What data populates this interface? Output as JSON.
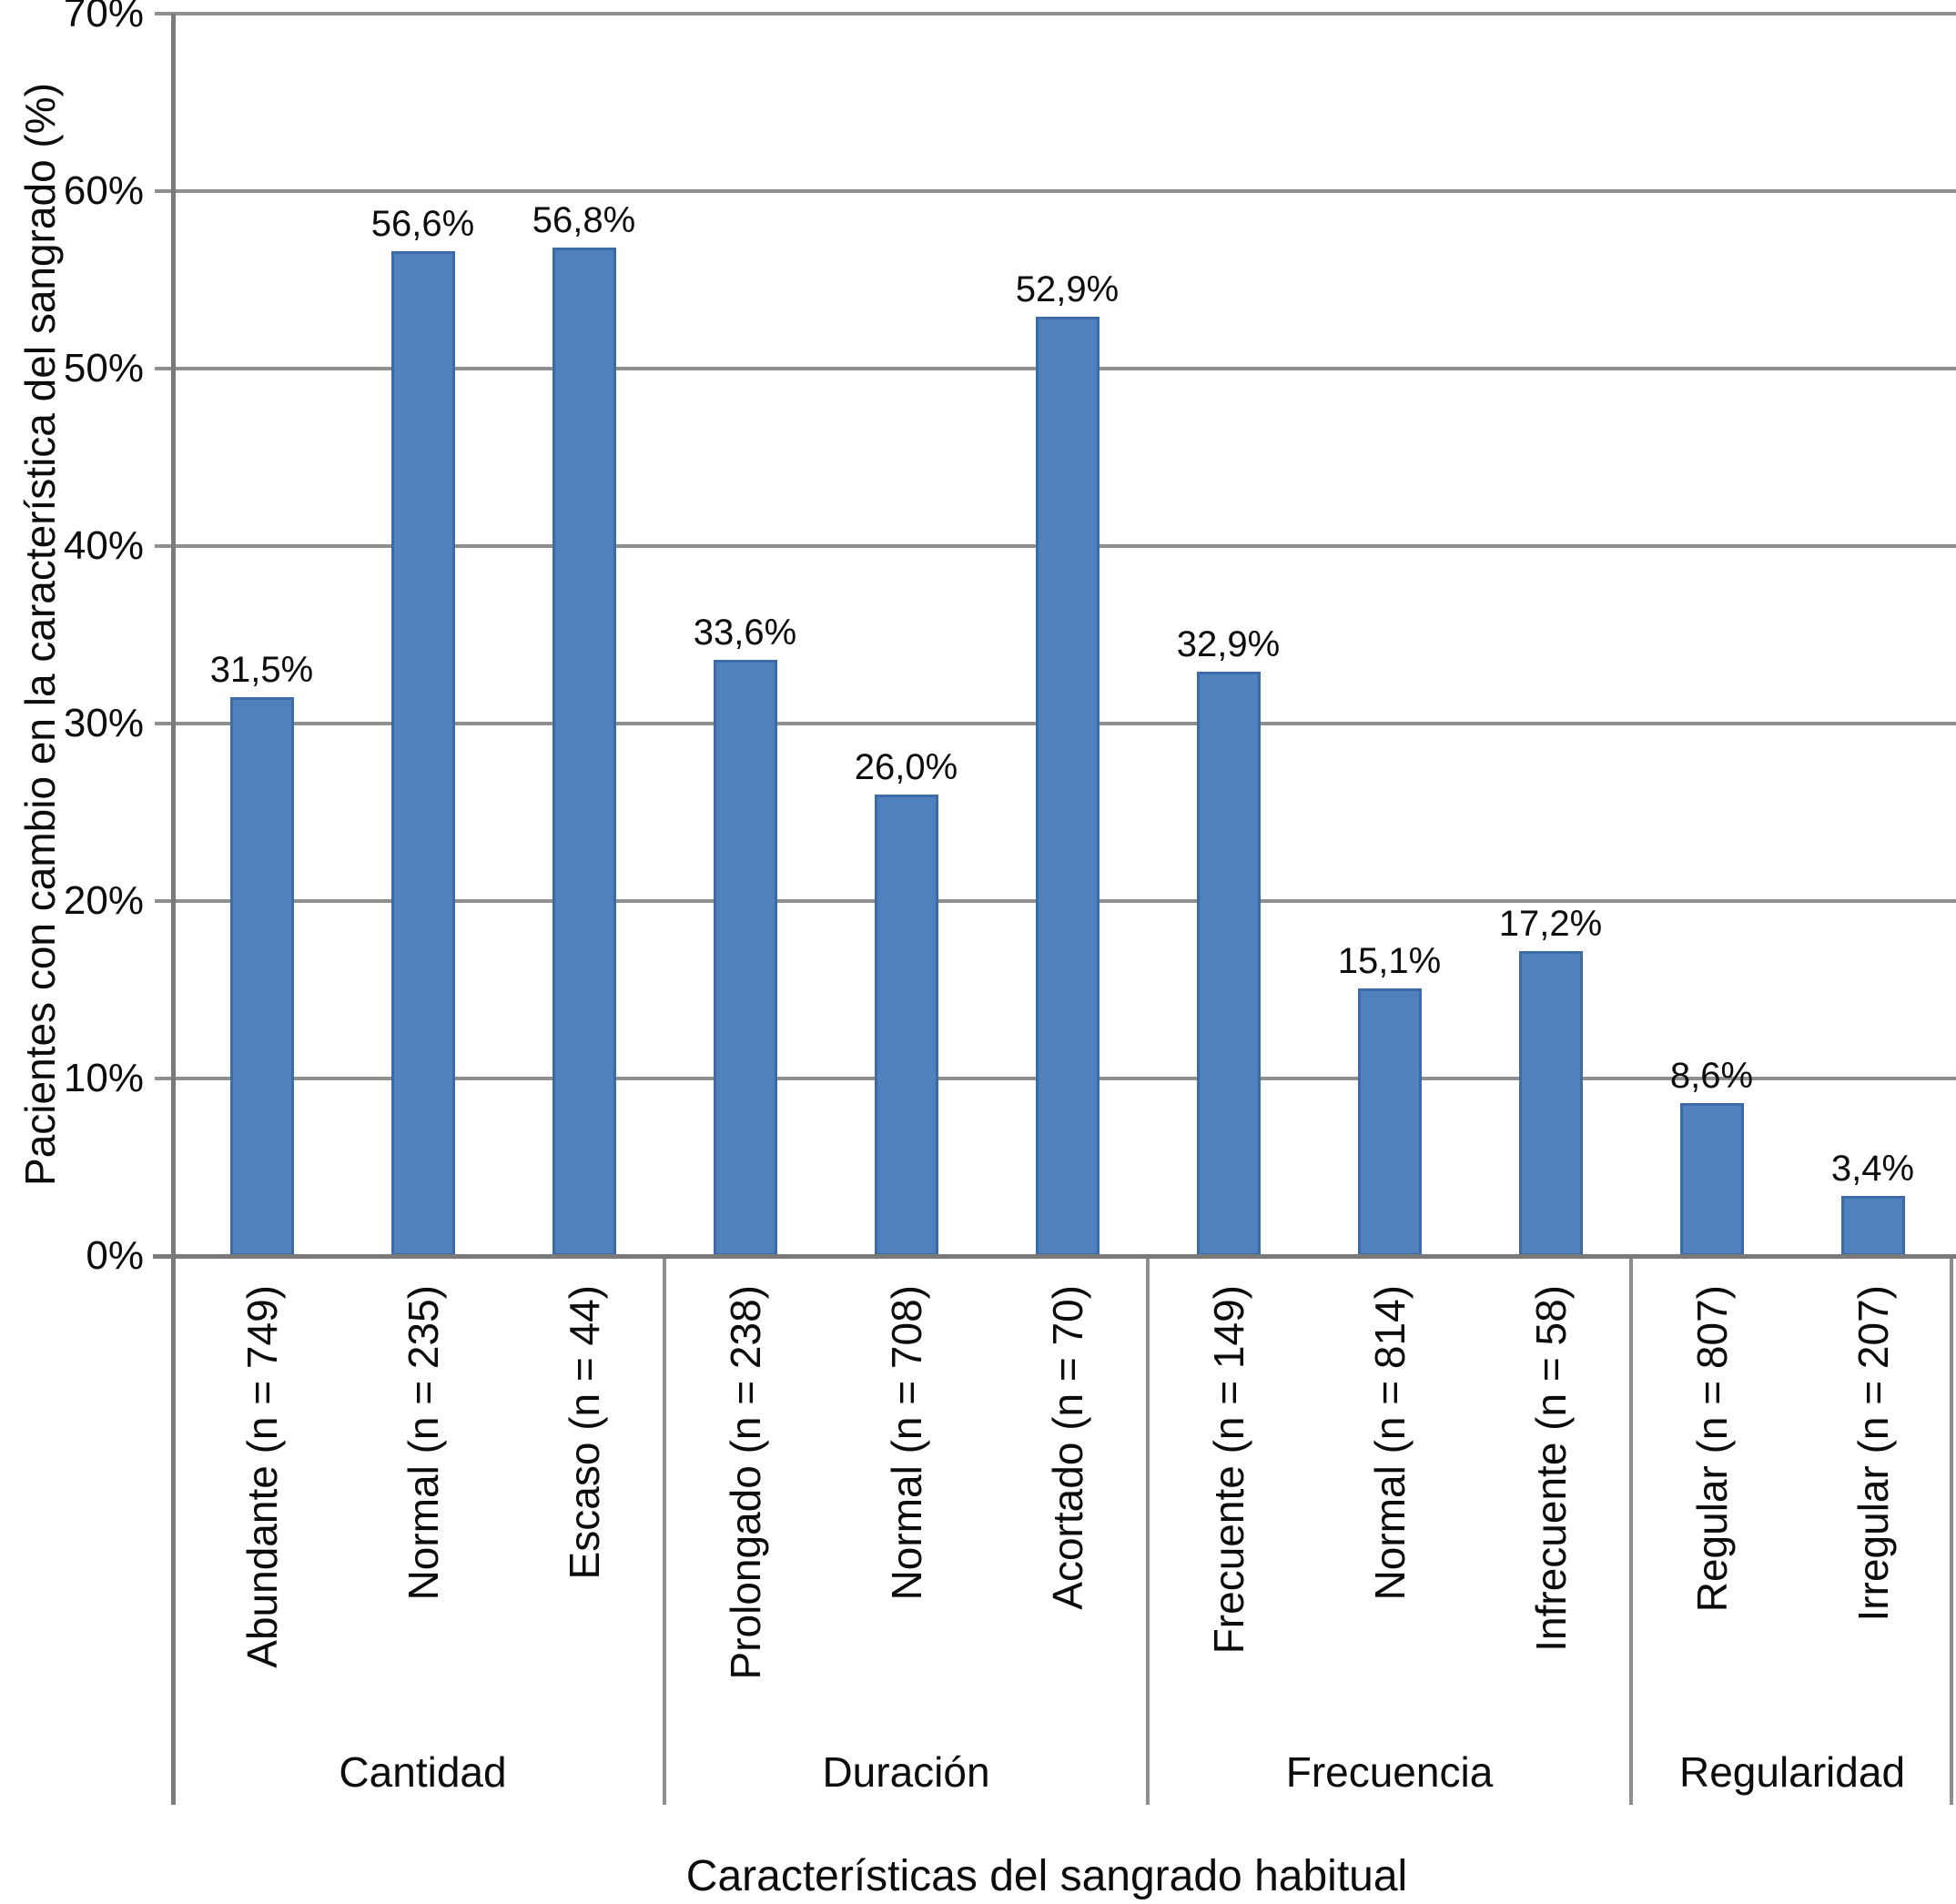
{
  "chart_data": {
    "type": "bar",
    "title": "",
    "xlabel": "Características del sangrado habitual",
    "ylabel": "Pacientes con cambio en la característica del sangrado (%)",
    "ylim": [
      0,
      70
    ],
    "ytick_step": 10,
    "ytick_labels": [
      "0%",
      "10%",
      "20%",
      "30%",
      "40%",
      "50%",
      "60%",
      "70%"
    ],
    "grid": true,
    "legend": "none",
    "bar_color": "#4f81bd",
    "bar_border_color": "#3c6ba8",
    "groups": [
      {
        "label": "Cantidad",
        "categories": [
          "Abundante (n = 749)",
          "Normal (n = 235)",
          "Escaso (n = 44)"
        ],
        "values": [
          31.5,
          56.6,
          56.8
        ],
        "value_labels": [
          "31,5%",
          "56,6%",
          "56,8%"
        ]
      },
      {
        "label": "Duración",
        "categories": [
          "Prolongado (n = 238)",
          "Normal (n = 708)",
          "Acortado (n = 70)"
        ],
        "values": [
          33.6,
          26.0,
          52.9
        ],
        "value_labels": [
          "33,6%",
          "26,0%",
          "52,9%"
        ]
      },
      {
        "label": "Frecuencia",
        "categories": [
          "Frecuente (n = 149)",
          "Normal (n = 814)",
          "Infrecuente (n = 58)"
        ],
        "values": [
          32.9,
          15.1,
          17.2
        ],
        "value_labels": [
          "32,9%",
          "15,1%",
          "17,2%"
        ]
      },
      {
        "label": "Regularidad",
        "categories": [
          "Regular (n = 807)",
          "Irregular (n = 207)"
        ],
        "values": [
          8.6,
          3.4
        ],
        "value_labels": [
          "8,6%",
          "3,4%"
        ]
      }
    ]
  }
}
